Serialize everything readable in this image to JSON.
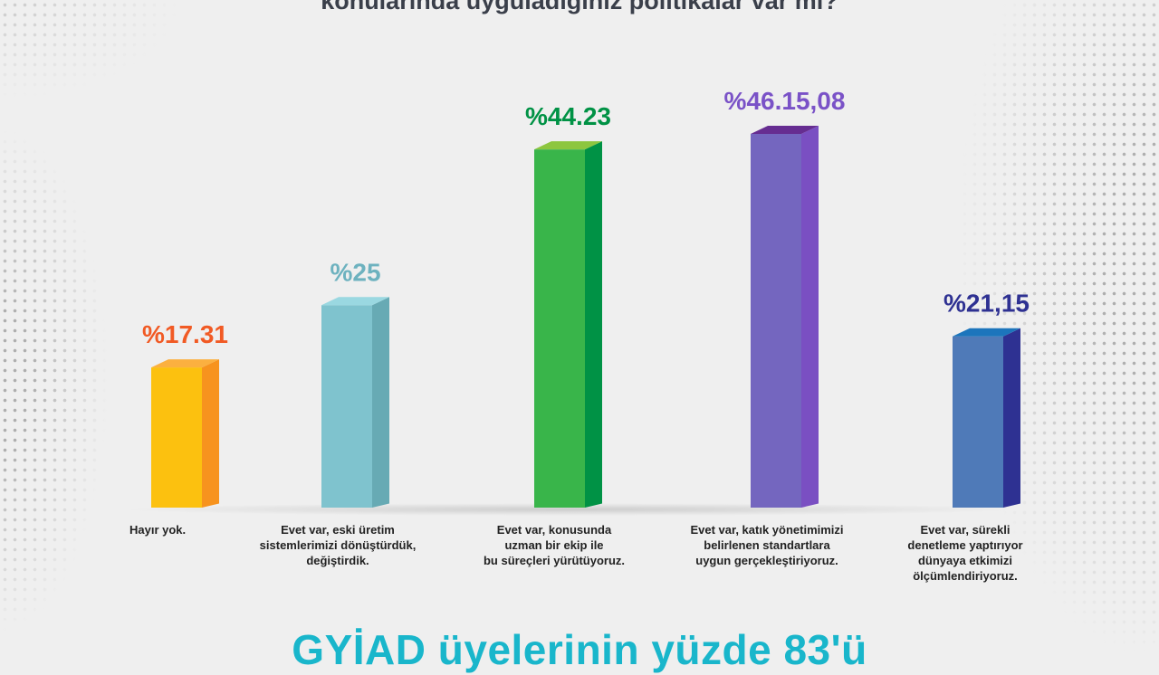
{
  "title": "konularında uyguladığınız politikalar var mı?",
  "footer": "GYİAD üyelerinin yüzde 83'ü",
  "chart_data": {
    "type": "bar",
    "categories": [
      "Hayır yok.",
      "Evet var, eski üretim sistemlerimizi dönüştürdük, değiştirdik.",
      "Evet var, konusunda uzman bir ekip ile bu süreçleri yürütüyoruz.",
      "Evet var, katık yönetimimizi belirlenen standartlara uygun gerçekleştiriyoruz.",
      "Evet var, sürekli denetleme yaptırıyor dünyaya etkimizi ölçümlendiriyoruz."
    ],
    "category_lines": [
      [
        "Hayır yok."
      ],
      [
        "Evet var, eski üretim",
        "sistemlerimizi dönüştürdük,",
        "değiştirdik."
      ],
      [
        "Evet var, konusunda",
        "uzman bir ekip ile",
        "bu süreçleri yürütüyoruz."
      ],
      [
        "Evet var, katık yönetimimizi",
        "belirlenen standartlara",
        "uygun gerçekleştiriyoruz."
      ],
      [
        "Evet var, sürekli",
        "denetleme yaptırıyor",
        "dünyaya etkimizi",
        "ölçümlendiriyoruz."
      ]
    ],
    "values": [
      17.31,
      25,
      44.23,
      46.15,
      21.15
    ],
    "value_labels": [
      "%17.31",
      "%25",
      "%44.23",
      "%46.15,08",
      "%21,15"
    ],
    "ylim": [
      0,
      50
    ],
    "grid": false,
    "colors": [
      {
        "front": "#fcc10f",
        "side": "#f7931e",
        "top": "#fbb040",
        "label": "#f15a24"
      },
      {
        "front": "#7fc3ce",
        "side": "#67aab4",
        "top": "#9ad8e1",
        "label": "#6db2bf"
      },
      {
        "front": "#39b54a",
        "side": "#009245",
        "top": "#8dc63f",
        "label": "#009245"
      },
      {
        "front": "#7466bf",
        "side": "#7a4fc2",
        "top": "#662d91",
        "label": "#7a52c7"
      },
      {
        "front": "#4f7ab8",
        "side": "#2e3192",
        "top": "#1c75bc",
        "label": "#2e3192"
      }
    ]
  }
}
